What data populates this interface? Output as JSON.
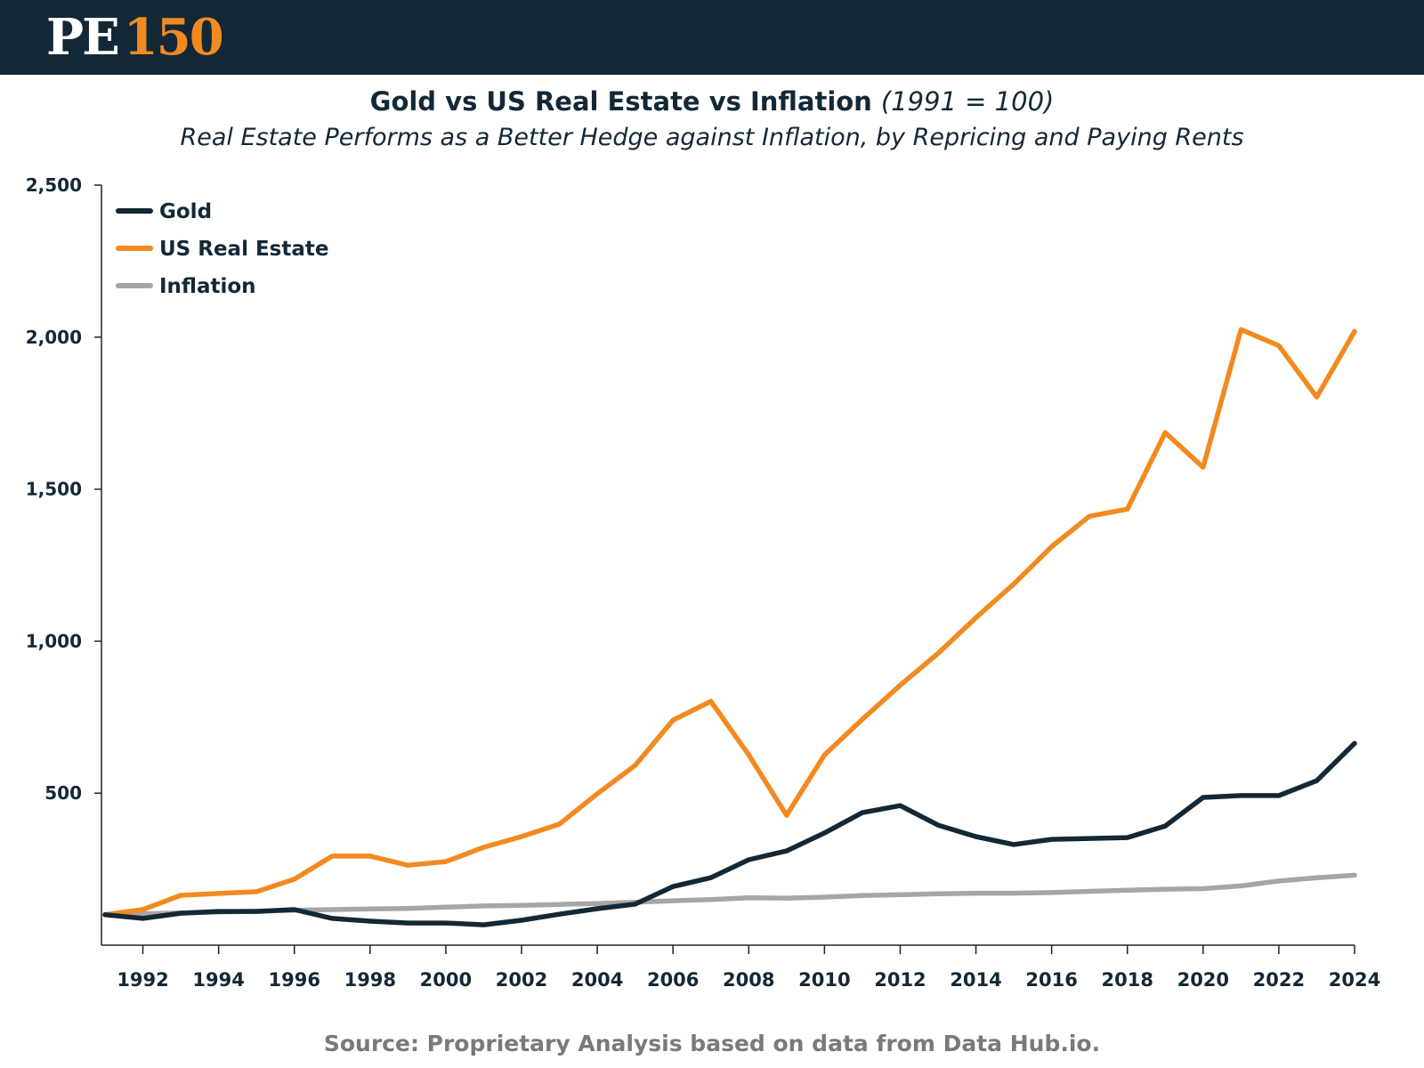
{
  "header": {
    "logo_pe": "PE",
    "logo_num": "150"
  },
  "source": "Source: Proprietary Analysis based on data from Data Hub.io.",
  "chart_data": {
    "type": "line",
    "title": "Gold vs US Real Estate vs Inflation",
    "title_note": "(1991 = 100)",
    "subtitle": "Real Estate Performs as a Better Hedge against Inflation, by Repricing and Paying Rents",
    "xlabel": "",
    "ylabel": "",
    "ylim": [
      0,
      2500
    ],
    "xlim": [
      1991,
      2024
    ],
    "grid": false,
    "legend_position": "top-left",
    "y_ticks": [
      500,
      1000,
      1500,
      2000,
      2500
    ],
    "y_tick_labels": [
      "500",
      "1,000",
      "1,500",
      "2,000",
      "2,500"
    ],
    "x_ticks": [
      1992,
      1994,
      1996,
      1998,
      2000,
      2002,
      2004,
      2006,
      2008,
      2010,
      2012,
      2014,
      2016,
      2018,
      2020,
      2022,
      2024
    ],
    "x_tick_labels": [
      "1992",
      "1994",
      "1996",
      "1998",
      "2000",
      "2002",
      "2004",
      "2006",
      "2008",
      "2010",
      "2012",
      "2014",
      "2016",
      "2018",
      "2020",
      "2022",
      "2024"
    ],
    "x": [
      1991,
      1992,
      1993,
      1994,
      1995,
      1996,
      1997,
      1998,
      1999,
      2000,
      2001,
      2002,
      2003,
      2004,
      2005,
      2006,
      2007,
      2008,
      2009,
      2010,
      2011,
      2012,
      2013,
      2014,
      2015,
      2016,
      2017,
      2018,
      2019,
      2020,
      2021,
      2022,
      2023,
      2024
    ],
    "series": [
      {
        "name": "Gold",
        "color": "#132836",
        "values": [
          100,
          88,
          105,
          111,
          111,
          117,
          88,
          79,
          73,
          73,
          67,
          82,
          102,
          120,
          135,
          193,
          222,
          281,
          310,
          369,
          436,
          459,
          395,
          357,
          331,
          348,
          351,
          354,
          392,
          486,
          492,
          492,
          541,
          664
        ]
      },
      {
        "name": "US Real Estate",
        "color": "#f28a20",
        "values": [
          100,
          117,
          164,
          170,
          176,
          217,
          293,
          293,
          263,
          275,
          322,
          357,
          398,
          498,
          591,
          740,
          802,
          626,
          427,
          626,
          743,
          855,
          960,
          1077,
          1188,
          1311,
          1411,
          1434,
          1686,
          1572,
          2025,
          1972,
          1803,
          2019
        ]
      },
      {
        "name": "Inflation",
        "color": "#a6a6a6",
        "values": [
          100,
          103,
          106,
          109,
          112,
          115,
          117,
          119,
          121,
          125,
          129,
          131,
          134,
          137,
          141,
          146,
          150,
          156,
          155,
          158,
          163,
          166,
          169,
          171,
          171,
          173,
          177,
          181,
          184,
          186,
          195,
          211,
          222,
          230
        ]
      }
    ]
  }
}
